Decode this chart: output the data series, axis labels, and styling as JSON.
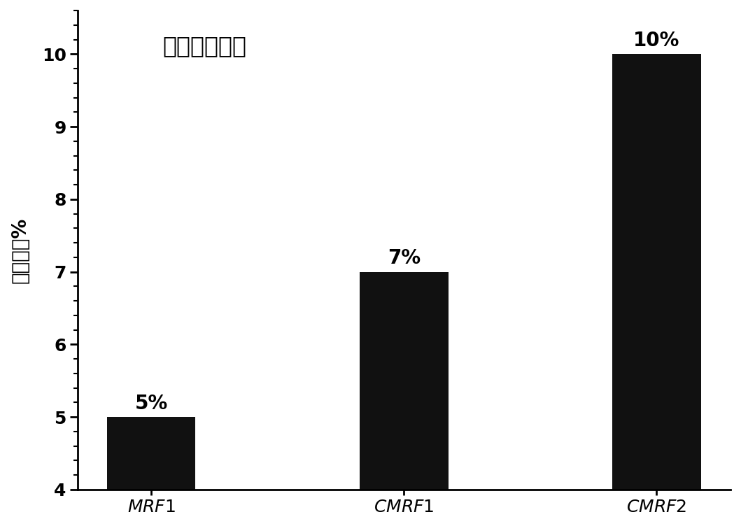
{
  "categories": [
    "MRF1",
    "CMRF1",
    "CMRF2"
  ],
  "values": [
    5,
    7,
    10
  ],
  "bar_color": "#111111",
  "bar_labels": [
    "5%",
    "7%",
    "10%"
  ],
  "title": "静置三个月后",
  "ylabel": "沉降率，%",
  "ylim": [
    4,
    10.6
  ],
  "ymin": 4,
  "yticks": [
    4,
    5,
    6,
    7,
    8,
    9,
    10
  ],
  "background_color": "#ffffff",
  "title_fontsize": 24,
  "ylabel_fontsize": 20,
  "tick_fontsize": 18,
  "label_fontsize": 20,
  "bar_width": 0.35,
  "minor_tick_count": 5
}
